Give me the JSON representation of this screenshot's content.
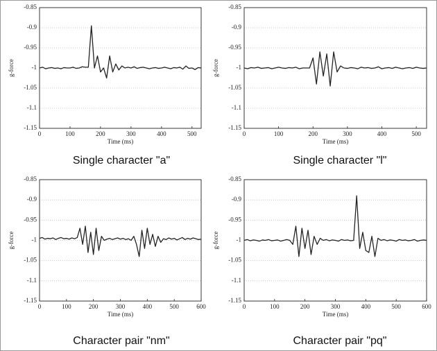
{
  "chart_data": [
    {
      "type": "line",
      "title": "Single character \"a\"",
      "xlabel": "Time (ms)",
      "ylabel": "g-force",
      "color": "#222222",
      "grid": true,
      "xlim": [
        0,
        530
      ],
      "ylim": [
        -1.15,
        -0.85
      ],
      "xticks": [
        0,
        100,
        200,
        300,
        400,
        500
      ],
      "yticks": [
        -0.85,
        -0.9,
        -0.95,
        -1,
        -1.05,
        -1.1,
        -1.15
      ],
      "x": [
        0,
        10,
        20,
        30,
        40,
        50,
        60,
        70,
        80,
        90,
        100,
        110,
        120,
        130,
        140,
        150,
        160,
        170,
        180,
        190,
        200,
        210,
        220,
        230,
        240,
        250,
        260,
        270,
        280,
        290,
        300,
        310,
        320,
        330,
        340,
        350,
        360,
        370,
        380,
        390,
        400,
        410,
        420,
        430,
        440,
        450,
        460,
        470,
        480,
        490,
        500,
        510,
        520,
        530
      ],
      "values": [
        -1,
        -0.998,
        -1.002,
        -1,
        -0.999,
        -1.001,
        -1,
        -1.002,
        -0.999,
        -1,
        -1,
        -0.998,
        -1.001,
        -1,
        -0.997,
        -0.998,
        -0.998,
        -0.895,
        -1,
        -0.97,
        -1.01,
        -1,
        -1.025,
        -0.97,
        -1.01,
        -0.99,
        -1.005,
        -0.995,
        -1,
        -0.998,
        -1,
        -0.997,
        -1.001,
        -0.999,
        -0.998,
        -1,
        -1.002,
        -1,
        -0.999,
        -1.001,
        -1,
        -0.998,
        -1,
        -1.002,
        -0.999,
        -1,
        -0.998,
        -1.003,
        -0.995,
        -1.001,
        -1,
        -1.004,
        -0.999,
        -1
      ]
    },
    {
      "type": "line",
      "title": "Single character \"l\"",
      "xlabel": "Time (ms)",
      "ylabel": "g-force",
      "color": "#222222",
      "grid": true,
      "xlim": [
        0,
        530
      ],
      "ylim": [
        -1.15,
        -0.85
      ],
      "xticks": [
        0,
        100,
        200,
        300,
        400,
        500
      ],
      "yticks": [
        -0.85,
        -0.9,
        -0.95,
        -1,
        -1.05,
        -1.1,
        -1.15
      ],
      "x": [
        0,
        10,
        20,
        30,
        40,
        50,
        60,
        70,
        80,
        90,
        100,
        110,
        120,
        130,
        140,
        150,
        160,
        170,
        180,
        190,
        200,
        210,
        220,
        230,
        240,
        250,
        260,
        270,
        280,
        290,
        300,
        310,
        320,
        330,
        340,
        350,
        360,
        370,
        380,
        390,
        400,
        410,
        420,
        430,
        440,
        450,
        460,
        470,
        480,
        490,
        500,
        510,
        520,
        530
      ],
      "values": [
        -1,
        -1.002,
        -0.999,
        -1,
        -0.998,
        -1.001,
        -1,
        -0.999,
        -1.002,
        -1,
        -0.998,
        -1,
        -1.001,
        -0.999,
        -1,
        -0.998,
        -1.002,
        -1,
        -1,
        -1,
        -0.975,
        -1.04,
        -0.96,
        -1.02,
        -0.965,
        -1.045,
        -0.96,
        -1.01,
        -0.995,
        -1,
        -1.001,
        -0.999,
        -1,
        -1.002,
        -0.998,
        -1,
        -0.999,
        -1.001,
        -1,
        -0.997,
        -1.002,
        -1,
        -0.999,
        -1.001,
        -0.998,
        -1,
        -1.002,
        -1,
        -0.999,
        -1.001,
        -0.998,
        -1,
        -1.001,
        -1
      ]
    },
    {
      "type": "line",
      "title": "Character pair \"nm\"",
      "xlabel": "Time (ms)",
      "ylabel": "g-force",
      "color": "#222222",
      "grid": true,
      "xlim": [
        0,
        600
      ],
      "ylim": [
        -1.15,
        -0.85
      ],
      "xticks": [
        0,
        100,
        200,
        300,
        400,
        500,
        600
      ],
      "yticks": [
        -0.85,
        -0.9,
        -0.95,
        -1,
        -1.05,
        -1.1,
        -1.15
      ],
      "x": [
        0,
        10,
        20,
        30,
        40,
        50,
        60,
        70,
        80,
        90,
        100,
        110,
        120,
        130,
        140,
        150,
        160,
        170,
        180,
        190,
        200,
        210,
        220,
        230,
        240,
        250,
        260,
        270,
        280,
        290,
        300,
        310,
        320,
        330,
        340,
        350,
        360,
        370,
        380,
        390,
        400,
        410,
        420,
        430,
        440,
        450,
        460,
        470,
        480,
        490,
        500,
        510,
        520,
        530,
        540,
        550,
        560,
        570,
        580,
        590,
        600
      ],
      "values": [
        -0.995,
        -0.993,
        -0.997,
        -0.995,
        -0.996,
        -0.994,
        -0.998,
        -0.995,
        -0.993,
        -0.996,
        -0.995,
        -0.997,
        -0.994,
        -0.996,
        -0.993,
        -0.97,
        -1.01,
        -0.965,
        -1.03,
        -0.98,
        -1.035,
        -0.97,
        -1.025,
        -0.99,
        -1,
        -0.997,
        -0.995,
        -0.998,
        -0.996,
        -0.994,
        -0.997,
        -0.995,
        -0.998,
        -0.996,
        -1,
        -0.99,
        -1.01,
        -1.04,
        -0.975,
        -1.02,
        -0.97,
        -1.01,
        -0.985,
        -1.015,
        -0.99,
        -1.005,
        -0.996,
        -0.998,
        -0.994,
        -0.997,
        -0.995,
        -0.999,
        -0.996,
        -0.993,
        -0.998,
        -0.995,
        -0.997,
        -0.994,
        -0.996,
        -0.998,
        -0.997
      ]
    },
    {
      "type": "line",
      "title": "Character pair \"pq\"",
      "xlabel": "Time (ms)",
      "ylabel": "g-force",
      "color": "#222222",
      "grid": true,
      "xlim": [
        0,
        600
      ],
      "ylim": [
        -1.15,
        -0.85
      ],
      "xticks": [
        0,
        100,
        200,
        300,
        400,
        500,
        600
      ],
      "yticks": [
        -0.85,
        -0.9,
        -0.95,
        -1,
        -1.05,
        -1.1,
        -1.15
      ],
      "x": [
        0,
        10,
        20,
        30,
        40,
        50,
        60,
        70,
        80,
        90,
        100,
        110,
        120,
        130,
        140,
        150,
        160,
        170,
        180,
        190,
        200,
        210,
        220,
        230,
        240,
        250,
        260,
        270,
        280,
        290,
        300,
        310,
        320,
        330,
        340,
        350,
        360,
        370,
        380,
        390,
        400,
        410,
        420,
        430,
        440,
        450,
        460,
        470,
        480,
        490,
        500,
        510,
        520,
        530,
        540,
        550,
        560,
        570,
        580,
        590,
        600
      ],
      "values": [
        -1,
        -0.998,
        -1.001,
        -0.999,
        -1,
        -1.002,
        -0.999,
        -1,
        -0.998,
        -1.001,
        -1,
        -0.999,
        -1.002,
        -1,
        -0.998,
        -1,
        -1.01,
        -0.965,
        -1.04,
        -0.97,
        -1.02,
        -0.975,
        -1.035,
        -0.99,
        -1.01,
        -0.995,
        -1,
        -0.998,
        -1.001,
        -0.999,
        -1,
        -1.002,
        -0.998,
        -1,
        -0.999,
        -1.001,
        -1,
        -0.89,
        -1.02,
        -0.98,
        -1.025,
        -1.03,
        -0.99,
        -1.04,
        -0.995,
        -1,
        -0.998,
        -1.001,
        -0.999,
        -1,
        -1.002,
        -0.998,
        -1,
        -0.999,
        -1.001,
        -1,
        -0.998,
        -1.002,
        -1,
        -0.999,
        -1
      ]
    }
  ]
}
